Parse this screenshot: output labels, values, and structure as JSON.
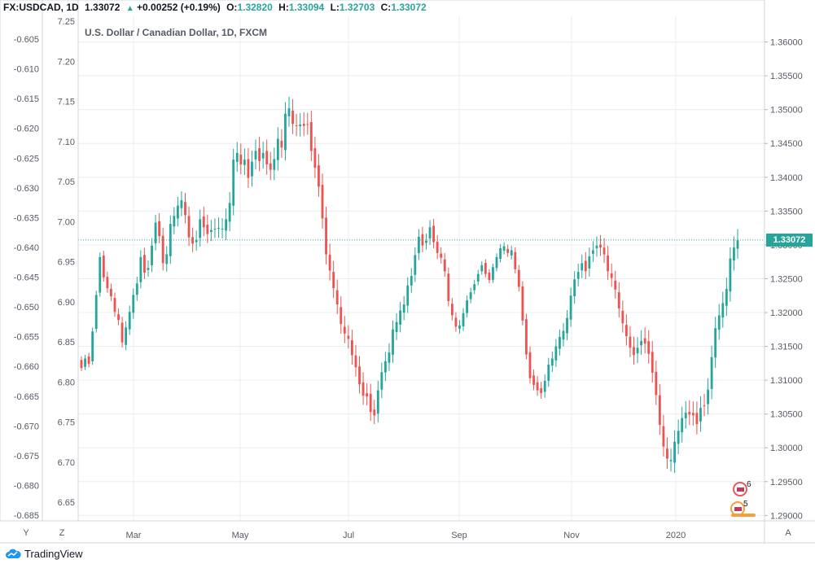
{
  "header": {
    "symbol": "FX:USDCAD, 1D",
    "last": "1.33072",
    "change": "+0.00252 (+0.19%)",
    "o_label": "O:",
    "o_value": "1.32820",
    "h_label": "H:",
    "h_value": "1.33094",
    "l_label": "L:",
    "l_value": "1.32703",
    "c_label": "C:",
    "c_value": "1.33072"
  },
  "watermark": "U.S. Dollar / Canadian Dollar, 1D, FXCM",
  "last_price_label": "1.33072",
  "footer": {
    "logo_text": "TradingView"
  },
  "bottom_buttons": {
    "y": "Y",
    "z": "Z",
    "a": "A"
  },
  "event_badges": [
    "6",
    "5"
  ],
  "colors": {
    "up": "#26a69a",
    "down": "#ef5350",
    "grid": "#e9ecf0",
    "price_line": "#26a69a",
    "text": "#131722",
    "axis_text": "#555a65"
  },
  "chart_data": {
    "type": "candlestick",
    "x_ticks": [
      "Mar",
      "May",
      "Jul",
      "Sep",
      "Nov",
      "2020"
    ],
    "right_axis": {
      "ticks": [
        "1.36000",
        "1.35500",
        "1.35000",
        "1.34500",
        "1.34000",
        "1.33500",
        "1.33000",
        "1.32500",
        "1.32000",
        "1.31500",
        "1.31000",
        "1.30500",
        "1.30000",
        "1.29500",
        "1.29000"
      ],
      "range": [
        1.2892,
        1.3638
      ]
    },
    "left_axis_outer": {
      "ticks": [
        "-0.605",
        "-0.610",
        "-0.615",
        "-0.620",
        "-0.625",
        "-0.630",
        "-0.635",
        "-0.640",
        "-0.645",
        "-0.650",
        "-0.655",
        "-0.660",
        "-0.665",
        "-0.670",
        "-0.675",
        "-0.680",
        "-0.685"
      ]
    },
    "left_axis_inner": {
      "ticks": [
        "7.25",
        "7.20",
        "7.15",
        "7.10",
        "7.05",
        "7.00",
        "6.95",
        "6.90",
        "6.85",
        "6.80",
        "6.75",
        "6.70",
        "6.65"
      ]
    },
    "last_close": 1.33072,
    "closes": [
      1.3118,
      1.3132,
      1.3124,
      1.3172,
      1.3226,
      1.3282,
      1.3252,
      1.3236,
      1.3224,
      1.3201,
      1.3189,
      1.3156,
      1.3178,
      1.3201,
      1.3226,
      1.3243,
      1.3282,
      1.3259,
      1.3266,
      1.3299,
      1.3333,
      1.3313,
      1.3273,
      1.3286,
      1.3331,
      1.3343,
      1.3358,
      1.3366,
      1.3344,
      1.3311,
      1.3302,
      1.3307,
      1.3338,
      1.3326,
      1.3316,
      1.3322,
      1.3324,
      1.3325,
      1.3324,
      1.3338,
      1.3362,
      1.3426,
      1.3436,
      1.3419,
      1.3426,
      1.3399,
      1.3423,
      1.3439,
      1.3424,
      1.3436,
      1.3419,
      1.3411,
      1.3427,
      1.3457,
      1.3444,
      1.3494,
      1.3502,
      1.3479,
      1.3476,
      1.3478,
      1.3476,
      1.3478,
      1.3439,
      1.3414,
      1.3386,
      1.3339,
      1.3286,
      1.3262,
      1.3236,
      1.3212,
      1.3183,
      1.3169,
      1.3161,
      1.3137,
      1.3119,
      1.3094,
      1.3077,
      1.3076,
      1.3053,
      1.3048,
      1.3085,
      1.3112,
      1.3128,
      1.3141,
      1.3175,
      1.3186,
      1.3203,
      1.3212,
      1.324,
      1.3254,
      1.3285,
      1.3312,
      1.3299,
      1.3306,
      1.3326,
      1.3304,
      1.3288,
      1.3281,
      1.3261,
      1.3217,
      1.3196,
      1.3179,
      1.3181,
      1.3199,
      1.3218,
      1.323,
      1.3242,
      1.3257,
      1.327,
      1.3257,
      1.3248,
      1.3267,
      1.3282,
      1.3295,
      1.3298,
      1.3288,
      1.3292,
      1.3264,
      1.3238,
      1.3188,
      1.3138,
      1.3103,
      1.3093,
      1.3085,
      1.3081,
      1.3099,
      1.3123,
      1.3132,
      1.315,
      1.3164,
      1.3173,
      1.3192,
      1.3225,
      1.3249,
      1.326,
      1.3273,
      1.3261,
      1.3283,
      1.3292,
      1.3299,
      1.3296,
      1.3286,
      1.3261,
      1.3251,
      1.3234,
      1.3206,
      1.3184,
      1.3165,
      1.3148,
      1.3137,
      1.3148,
      1.3158,
      1.3154,
      1.3139,
      1.3111,
      1.3078,
      1.3034,
      1.3002,
      1.2984,
      1.2982,
      1.3009,
      1.3025,
      1.3044,
      1.3052,
      1.3049,
      1.3048,
      1.3035,
      1.3059,
      1.3062,
      1.3086,
      1.3134,
      1.3177,
      1.3196,
      1.3214,
      1.3235,
      1.328,
      1.3296,
      1.3307
    ]
  }
}
